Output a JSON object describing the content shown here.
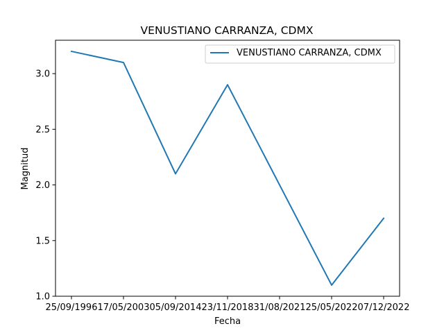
{
  "chart_data": {
    "type": "line",
    "title": "VENUSTIANO CARRANZA, CDMX",
    "xlabel": "Fecha",
    "ylabel": "Magnitud",
    "categories": [
      "25/09/1996",
      "17/05/2003",
      "05/09/2014",
      "23/11/2018",
      "31/08/2021",
      "25/05/2022",
      "07/12/2022"
    ],
    "series": [
      {
        "name": "VENUSTIANO CARRANZA, CDMX",
        "values": [
          3.2,
          3.1,
          2.1,
          2.9,
          2.0,
          1.1,
          1.7
        ],
        "color": "#1f77b4"
      }
    ],
    "ylim": [
      1.0,
      3.3
    ],
    "yticks": [
      "1.0",
      "1.5",
      "2.0",
      "2.5",
      "3.0"
    ],
    "legend": "top-right",
    "grid": false
  }
}
